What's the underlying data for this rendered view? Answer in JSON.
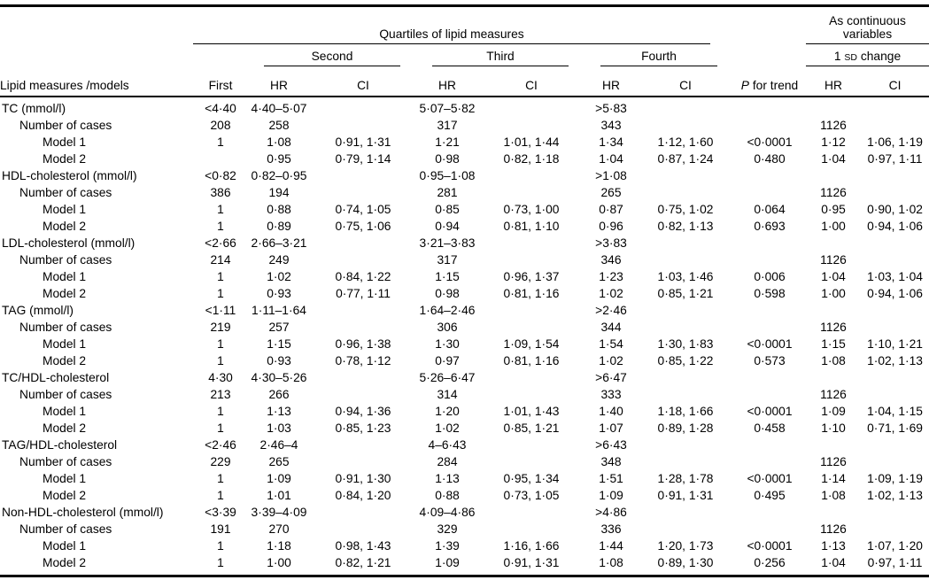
{
  "table": {
    "header": {
      "group_quartiles": "Quartiles of lipid measures",
      "group_continuous": "As continuous variables",
      "spanner_second": "Second",
      "spanner_third": "Third",
      "spanner_fourth": "Fourth",
      "sd_pre": "1 ",
      "sd_smallcaps": "SD",
      "sd_post": " change",
      "row_label": "Lipid measures /models",
      "first": "First",
      "hr": "HR",
      "ci": "CI",
      "p_italic": "P",
      "p_rest": " for trend"
    },
    "rows": [
      {
        "label": "TC (mmol/l)",
        "indent": 0,
        "cells": [
          "<4·40",
          "4·40–5·07",
          "",
          "5·07–5·82",
          "",
          ">5·83",
          "",
          "",
          "",
          ""
        ]
      },
      {
        "label": "Number of cases",
        "indent": 1,
        "cells": [
          "208",
          "258",
          "",
          "317",
          "",
          "343",
          "",
          "",
          "1126",
          ""
        ]
      },
      {
        "label": "Model 1",
        "indent": 2,
        "cells": [
          "1",
          "1·08",
          "0·91, 1·31",
          "1·21",
          "1·01, 1·44",
          "1·34",
          "1·12, 1·60",
          "<0·0001",
          "1·12",
          "1·06, 1·19"
        ]
      },
      {
        "label": "Model 2",
        "indent": 2,
        "cells": [
          "",
          "0·95",
          "0·79, 1·14",
          "0·98",
          "0·82, 1·18",
          "1·04",
          "0·87, 1·24",
          "0·480",
          "1·04",
          "0·97, 1·11"
        ]
      },
      {
        "label": "HDL-cholesterol (mmol/l)",
        "indent": 0,
        "cells": [
          "<0·82",
          "0·82–0·95",
          "",
          "0·95–1·08",
          "",
          ">1·08",
          "",
          "",
          "",
          ""
        ]
      },
      {
        "label": "Number of cases",
        "indent": 1,
        "cells": [
          "386",
          "194",
          "",
          "281",
          "",
          "265",
          "",
          "",
          "1126",
          ""
        ]
      },
      {
        "label": "Model 1",
        "indent": 2,
        "cells": [
          "1",
          "0·88",
          "0·74, 1·05",
          "0·85",
          "0·73, 1·00",
          "0·87",
          "0·75, 1·02",
          "0·064",
          "0·95",
          "0·90, 1·02"
        ]
      },
      {
        "label": "Model 2",
        "indent": 2,
        "cells": [
          "1",
          "0·89",
          "0·75, 1·06",
          "0·94",
          "0·81, 1·10",
          "0·96",
          "0·82, 1·13",
          "0·693",
          "1·00",
          "0·94, 1·06"
        ]
      },
      {
        "label": "LDL-cholesterol (mmol/l)",
        "indent": 0,
        "cells": [
          "<2·66",
          "2·66–3·21",
          "",
          "3·21–3·83",
          "",
          ">3·83",
          "",
          "",
          "",
          ""
        ]
      },
      {
        "label": "Number of cases",
        "indent": 1,
        "cells": [
          "214",
          "249",
          "",
          "317",
          "",
          "346",
          "",
          "",
          "1126",
          ""
        ]
      },
      {
        "label": "Model 1",
        "indent": 2,
        "cells": [
          "1",
          "1·02",
          "0·84, 1·22",
          "1·15",
          "0·96, 1·37",
          "1·23",
          "1·03, 1·46",
          "0·006",
          "1·04",
          "1·03, 1·04"
        ]
      },
      {
        "label": "Model 2",
        "indent": 2,
        "cells": [
          "1",
          "0·93",
          "0·77, 1·11",
          "0·98",
          "0·81, 1·16",
          "1·02",
          "0·85, 1·21",
          "0·598",
          "1·00",
          "0·94, 1·06"
        ]
      },
      {
        "label": "TAG (mmol/l)",
        "indent": 0,
        "cells": [
          "<1·11",
          "1·11–1·64",
          "",
          "1·64–2·46",
          "",
          ">2·46",
          "",
          "",
          "",
          ""
        ]
      },
      {
        "label": "Number of cases",
        "indent": 1,
        "cells": [
          "219",
          "257",
          "",
          "306",
          "",
          "344",
          "",
          "",
          "1126",
          ""
        ]
      },
      {
        "label": "Model 1",
        "indent": 2,
        "cells": [
          "1",
          "1·15",
          "0·96, 1·38",
          "1·30",
          "1·09, 1·54",
          "1·54",
          "1·30, 1·83",
          "<0·0001",
          "1·15",
          "1·10, 1·21"
        ]
      },
      {
        "label": "Model 2",
        "indent": 2,
        "cells": [
          "1",
          "0·93",
          "0·78, 1·12",
          "0·97",
          "0·81, 1·16",
          "1·02",
          "0·85, 1·22",
          "0·573",
          "1·08",
          "1·02, 1·13"
        ]
      },
      {
        "label": "TC/HDL-cholesterol",
        "indent": 0,
        "cells": [
          "4·30",
          "4·30–5·26",
          "",
          "5·26–6·47",
          "",
          ">6·47",
          "",
          "",
          "",
          ""
        ]
      },
      {
        "label": "Number of cases",
        "indent": 1,
        "cells": [
          "213",
          "266",
          "",
          "314",
          "",
          "333",
          "",
          "",
          "1126",
          ""
        ]
      },
      {
        "label": "Model 1",
        "indent": 2,
        "cells": [
          "1",
          "1·13",
          "0·94, 1·36",
          "1·20",
          "1·01, 1·43",
          "1·40",
          "1·18, 1·66",
          "<0·0001",
          "1·09",
          "1·04, 1·15"
        ]
      },
      {
        "label": "Model 2",
        "indent": 2,
        "cells": [
          "1",
          "1·03",
          "0·85, 1·23",
          "1·02",
          "0·85, 1·21",
          "1·07",
          "0·89, 1·28",
          "0·458",
          "1·10",
          "0·71, 1·69"
        ]
      },
      {
        "label": "TAG/HDL-cholesterol",
        "indent": 0,
        "cells": [
          "<2·46",
          "2·46–4",
          "",
          "4–6·43",
          "",
          ">6·43",
          "",
          "",
          "",
          ""
        ]
      },
      {
        "label": "Number of cases",
        "indent": 1,
        "cells": [
          "229",
          "265",
          "",
          "284",
          "",
          "348",
          "",
          "",
          "1126",
          ""
        ]
      },
      {
        "label": "Model 1",
        "indent": 2,
        "cells": [
          "1",
          "1·09",
          "0·91, 1·30",
          "1·13",
          "0·95, 1·34",
          "1·51",
          "1·28, 1·78",
          "<0·0001",
          "1·14",
          "1·09, 1·19"
        ]
      },
      {
        "label": "Model 2",
        "indent": 2,
        "cells": [
          "1",
          "1·01",
          "0·84, 1·20",
          "0·88",
          "0·73, 1·05",
          "1·09",
          "0·91, 1·31",
          "0·495",
          "1·08",
          "1·02, 1·13"
        ]
      },
      {
        "label": "Non-HDL-cholesterol (mmol/l)",
        "indent": 0,
        "cells": [
          "<3·39",
          "3·39–4·09",
          "",
          "4·09–4·86",
          "",
          ">4·86",
          "",
          "",
          "",
          ""
        ]
      },
      {
        "label": "Number of cases",
        "indent": 1,
        "cells": [
          "191",
          "270",
          "",
          "329",
          "",
          "336",
          "",
          "",
          "1126",
          ""
        ]
      },
      {
        "label": "Model 1",
        "indent": 2,
        "cells": [
          "1",
          "1·18",
          "0·98, 1·43",
          "1·39",
          "1·16, 1·66",
          "1·44",
          "1·20, 1·73",
          "<0·0001",
          "1·13",
          "1·07, 1·20"
        ]
      },
      {
        "label": "Model 2",
        "indent": 2,
        "cells": [
          "1",
          "1·00",
          "0·82, 1·21",
          "1·09",
          "0·91, 1·31",
          "1·08",
          "0·89, 1·30",
          "0·256",
          "1·04",
          "0·97, 1·11"
        ]
      }
    ]
  }
}
